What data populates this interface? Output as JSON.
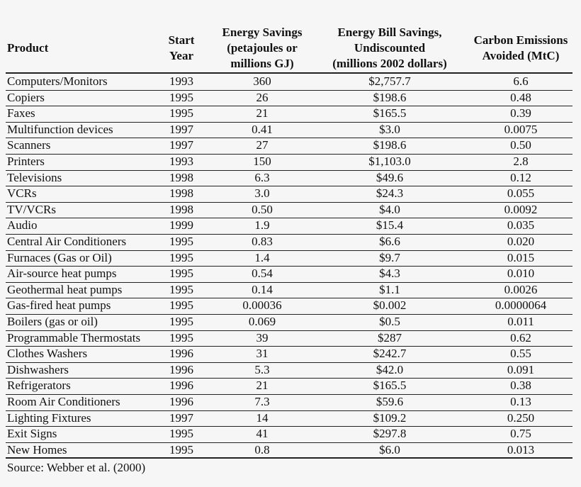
{
  "table": {
    "headers": [
      [
        "Product"
      ],
      [
        "Start",
        "Year"
      ],
      [
        "Energy Savings",
        "(petajoules or",
        "millions GJ)"
      ],
      [
        "Energy Bill Savings,",
        "Undiscounted",
        "(millions 2002 dollars)"
      ],
      [
        "Carbon Emissions",
        "Avoided (MtC)"
      ]
    ],
    "rows": [
      [
        "Computers/Monitors",
        "1993",
        "360",
        "$2,757.7",
        "6.6"
      ],
      [
        "Copiers",
        "1995",
        "26",
        "$198.6",
        "0.48"
      ],
      [
        "Faxes",
        "1995",
        "21",
        "$165.5",
        "0.39"
      ],
      [
        "Multifunction devices",
        "1997",
        "0.41",
        "$3.0",
        "0.0075"
      ],
      [
        "Scanners",
        "1997",
        "27",
        "$198.6",
        "0.50"
      ],
      [
        "Printers",
        "1993",
        "150",
        "$1,103.0",
        "2.8"
      ],
      [
        "Televisions",
        "1998",
        "6.3",
        "$49.6",
        "0.12"
      ],
      [
        "VCRs",
        "1998",
        "3.0",
        "$24.3",
        "0.055"
      ],
      [
        "TV/VCRs",
        "1998",
        "0.50",
        "$4.0",
        "0.0092"
      ],
      [
        "Audio",
        "1999",
        "1.9",
        "$15.4",
        "0.035"
      ],
      [
        "Central Air Conditioners",
        "1995",
        "0.83",
        "$6.6",
        "0.020"
      ],
      [
        "Furnaces (Gas or Oil)",
        "1995",
        "1.4",
        "$9.7",
        "0.015"
      ],
      [
        "Air-source heat pumps",
        "1995",
        "0.54",
        "$4.3",
        "0.010"
      ],
      [
        "Geothermal heat pumps",
        "1995",
        "0.14",
        "$1.1",
        "0.0026"
      ],
      [
        "Gas-fired heat pumps",
        "1995",
        "0.00036",
        "$0.002",
        "0.0000064"
      ],
      [
        "Boilers (gas or oil)",
        "1995",
        "0.069",
        "$0.5",
        "0.011"
      ],
      [
        "Programmable Thermostats",
        "1995",
        "39",
        "$287",
        "0.62"
      ],
      [
        "Clothes Washers",
        "1996",
        "31",
        "$242.7",
        "0.55"
      ],
      [
        "Dishwashers",
        "1996",
        "5.3",
        "$42.0",
        "0.091"
      ],
      [
        "Refrigerators",
        "1996",
        "21",
        "$165.5",
        "0.38"
      ],
      [
        "Room Air Conditioners",
        "1996",
        "7.3",
        "$59.6",
        "0.13"
      ],
      [
        "Lighting Fixtures",
        "1997",
        "14",
        "$109.2",
        "0.250"
      ],
      [
        "Exit Signs",
        "1995",
        "41",
        "$297.8",
        "0.75"
      ],
      [
        "New Homes",
        "1995",
        "0.8",
        "$6.0",
        "0.013"
      ]
    ],
    "source": "Source: Webber et al. (2000)"
  }
}
